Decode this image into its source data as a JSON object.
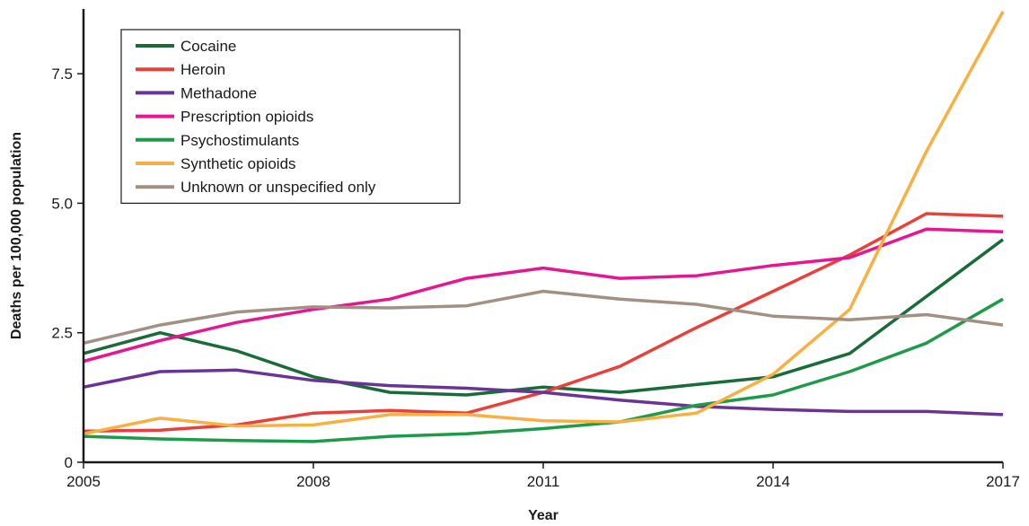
{
  "chart_data": {
    "type": "line",
    "title": "",
    "xlabel": "Year",
    "ylabel": "Deaths per 100,000 population",
    "xlim": [
      2005,
      2017
    ],
    "ylim": [
      0,
      8.75
    ],
    "x_ticks": [
      "2005",
      "2008",
      "2011",
      "2014",
      "2017"
    ],
    "y_ticks": [
      "0",
      "2.5",
      "5.0",
      "7.5"
    ],
    "y_tick_values": [
      0,
      2.5,
      5.0,
      7.5
    ],
    "grid": false,
    "legend_position": "top-left",
    "x": [
      2005,
      2006,
      2007,
      2008,
      2009,
      2010,
      2011,
      2012,
      2013,
      2014,
      2015,
      2016,
      2017
    ],
    "series": [
      {
        "name": "Cocaine",
        "color": "#1a6b3a",
        "values": [
          2.1,
          2.5,
          2.15,
          1.65,
          1.35,
          1.3,
          1.45,
          1.35,
          1.5,
          1.65,
          2.1,
          3.2,
          4.3
        ]
      },
      {
        "name": "Heroin",
        "color": "#e8413c",
        "values": [
          0.6,
          0.62,
          0.72,
          0.95,
          1.0,
          0.95,
          1.35,
          1.85,
          2.6,
          3.3,
          4.0,
          4.8,
          4.75
        ]
      },
      {
        "name": "Methadone",
        "color": "#6a3494",
        "values": [
          1.45,
          1.75,
          1.78,
          1.58,
          1.48,
          1.43,
          1.35,
          1.2,
          1.08,
          1.02,
          0.98,
          0.98,
          0.92
        ]
      },
      {
        "name": "Prescription opioids",
        "color": "#e5178e",
        "values": [
          1.95,
          2.35,
          2.7,
          2.95,
          3.15,
          3.55,
          3.75,
          3.55,
          3.6,
          3.8,
          3.95,
          4.5,
          4.45
        ]
      },
      {
        "name": "Psychostimulants",
        "color": "#1f9a4a",
        "values": [
          0.5,
          0.45,
          0.42,
          0.4,
          0.5,
          0.55,
          0.65,
          0.78,
          1.1,
          1.3,
          1.75,
          2.3,
          3.15
        ]
      },
      {
        "name": "Synthetic opioids",
        "color": "#f9b042",
        "values": [
          0.55,
          0.85,
          0.7,
          0.72,
          0.92,
          0.92,
          0.8,
          0.78,
          0.95,
          1.7,
          2.95,
          6.0,
          8.7
        ]
      },
      {
        "name": "Unknown or unspecified only",
        "color": "#a39084",
        "values": [
          2.3,
          2.65,
          2.9,
          3.0,
          2.98,
          3.02,
          3.3,
          3.15,
          3.05,
          2.82,
          2.75,
          2.85,
          2.65
        ]
      }
    ]
  }
}
